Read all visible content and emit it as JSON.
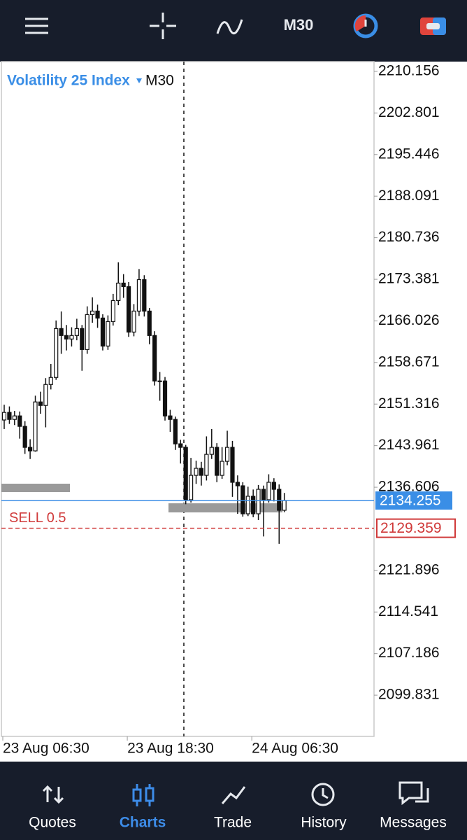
{
  "top_bar": {
    "timeframe": "M30"
  },
  "chart_data": {
    "type": "candlestick",
    "title": "Volatility 25 Index",
    "timeframe": "M30",
    "categories": [
      "23 Aug 06:30",
      null,
      null,
      null,
      null,
      null,
      null,
      null,
      null,
      null,
      null,
      null,
      null,
      null,
      null,
      null,
      null,
      null,
      null,
      null,
      null,
      null,
      null,
      null,
      "23 Aug 18:30",
      null,
      null,
      null,
      null,
      null,
      null,
      null,
      null,
      null,
      null,
      null,
      null,
      null,
      null,
      null,
      null,
      null,
      null,
      null,
      null,
      null,
      null,
      null,
      "24 Aug 06:30",
      null,
      null,
      null,
      null,
      null,
      null
    ],
    "open": [
      2148.5,
      2149.84,
      2148.6,
      2149.22,
      2147.37,
      2143.66,
      2143.04,
      2151.69,
      2151.07,
      2154.78,
      2156.02,
      2164.67,
      2163.44,
      2162.82,
      2163.44,
      2164.67,
      2160.96,
      2167.14,
      2167.76,
      2166.53,
      2161.58,
      2165.91,
      2169.62,
      2172.71,
      2172.09,
      2164.05,
      2167.76,
      2173.32,
      2167.76,
      2163.44,
      2155.4,
      2155.4,
      2149.22,
      2148.6,
      2144.28,
      2143.66,
      2134.39,
      2138.71,
      2139.95,
      2138.71,
      2142.42,
      2143.66,
      2138.71,
      2141.19,
      2143.66,
      2137.48,
      2136.86,
      2131.91,
      2135.01,
      2131.91,
      2136.24,
      2134.39,
      2137.48,
      2136.24,
      2132.53
    ],
    "high": [
      2151.2,
      2150.9,
      2150.1,
      2150.0,
      2148.3,
      2145.1,
      2152.8,
      2153.5,
      2155.9,
      2158.4,
      2166.1,
      2167.7,
      2165.3,
      2164.9,
      2166.4,
      2165.3,
      2168.6,
      2170.2,
      2168.9,
      2167.2,
      2167.0,
      2170.8,
      2176.4,
      2174.3,
      2172.9,
      2169.0,
      2175.2,
      2174.1,
      2168.3,
      2164.2,
      2157.0,
      2156.1,
      2150.3,
      2149.1,
      2145.0,
      2144.1,
      2141.8,
      2141.3,
      2141.1,
      2145.6,
      2146.9,
      2144.4,
      2143.7,
      2146.6,
      2144.8,
      2138.7,
      2137.5,
      2136.7,
      2136.2,
      2137.0,
      2136.9,
      2138.9,
      2138.2,
      2137.1,
      2135.6
    ],
    "low": [
      2146.9,
      2147.8,
      2147.6,
      2145.2,
      2142.5,
      2141.6,
      2142.9,
      2149.6,
      2147.2,
      2153.9,
      2155.6,
      2160.2,
      2160.8,
      2161.5,
      2162.6,
      2157.2,
      2160.2,
      2165.7,
      2164.8,
      2160.8,
      2160.9,
      2165.2,
      2168.8,
      2170.1,
      2163.2,
      2163.3,
      2166.9,
      2166.8,
      2161.9,
      2154.6,
      2151.9,
      2148.4,
      2146.4,
      2143.2,
      2140.8,
      2133.6,
      2133.9,
      2137.2,
      2136.9,
      2137.8,
      2141.6,
      2137.5,
      2138.1,
      2140.5,
      2134.9,
      2131.9,
      2131.4,
      2131.5,
      2131.3,
      2130.8,
      2127.9,
      2133.9,
      2134.1,
      2126.6,
      2132.2
    ],
    "close": [
      2149.84,
      2148.6,
      2149.22,
      2147.37,
      2143.66,
      2143.04,
      2151.69,
      2151.07,
      2154.78,
      2156.02,
      2164.67,
      2163.44,
      2162.82,
      2163.44,
      2164.67,
      2160.96,
      2167.14,
      2167.76,
      2166.53,
      2161.58,
      2165.91,
      2169.62,
      2172.71,
      2172.09,
      2164.05,
      2167.76,
      2173.32,
      2167.76,
      2163.44,
      2155.4,
      2155.4,
      2149.22,
      2148.6,
      2144.28,
      2143.66,
      2134.39,
      2138.71,
      2139.95,
      2138.71,
      2142.42,
      2143.66,
      2138.71,
      2141.19,
      2143.66,
      2137.48,
      2136.86,
      2131.91,
      2135.01,
      2131.91,
      2136.24,
      2134.39,
      2137.48,
      2136.24,
      2132.53,
      2134.26
    ],
    "ylim": [
      2092.538,
      2211.887
    ],
    "yticks": [
      2210.156,
      2202.801,
      2195.446,
      2188.091,
      2180.736,
      2173.381,
      2166.026,
      2158.671,
      2151.316,
      2143.961,
      2136.606,
      2121.896,
      2114.541,
      2107.186,
      2099.831
    ],
    "current_price": 2134.255,
    "current_price_color": "#3a8ee6",
    "order": {
      "label": "SELL 0.5",
      "price": 2129.359,
      "color": "#d03a3a"
    }
  },
  "bottom_nav": {
    "items": [
      "Quotes",
      "Charts",
      "Trade",
      "History",
      "Messages"
    ],
    "active": 1,
    "active_color": "#3d8ce8"
  }
}
